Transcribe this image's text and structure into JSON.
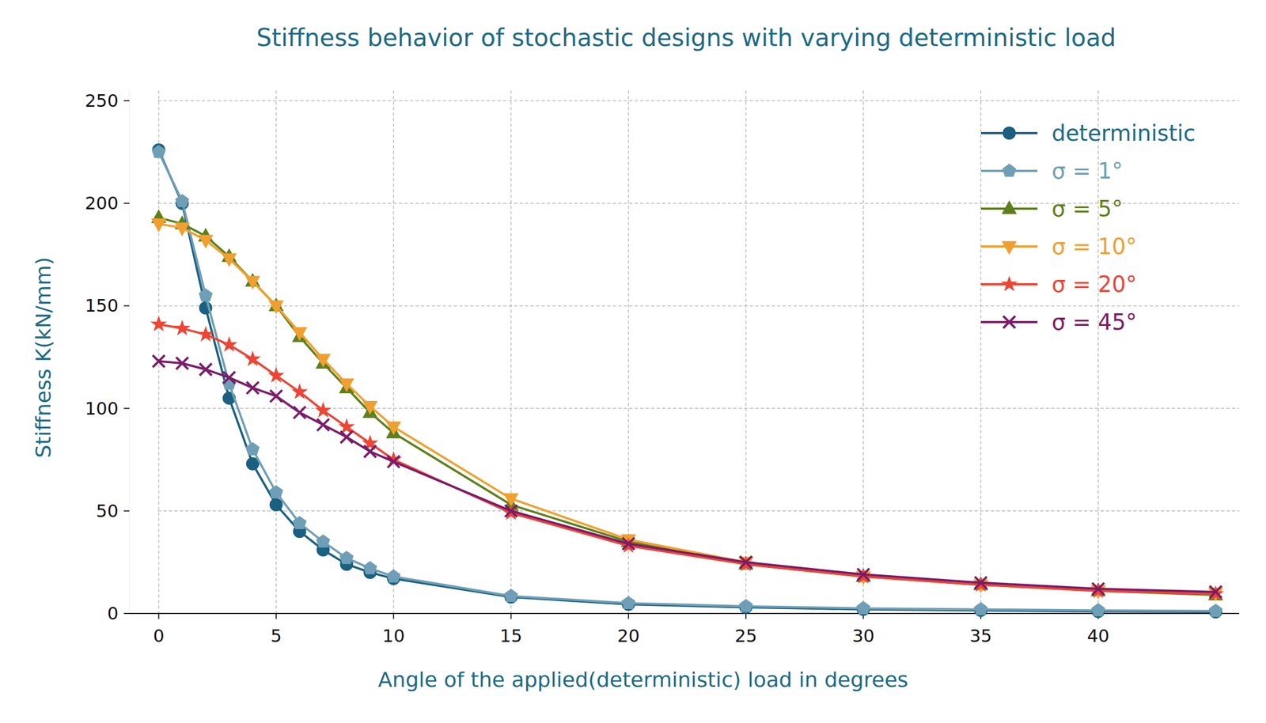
{
  "chart_data": {
    "type": "line",
    "title": "Stiffness behavior of stochastic designs with varying deterministic load",
    "x_label": "Angle of the applied(deterministic) load in degrees",
    "y_label": "Stiffness K(kN/mm)",
    "x": [
      0,
      1,
      2,
      3,
      4,
      5,
      6,
      7,
      8,
      9,
      10,
      15,
      20,
      25,
      30,
      35,
      40,
      45
    ],
    "series": [
      {
        "name": "deterministic",
        "color": "#1b6081",
        "marker": "circle",
        "values": [
          226,
          200,
          149,
          105,
          73,
          53,
          40,
          31,
          24,
          20,
          17,
          8,
          4.5,
          3,
          2,
          1.5,
          1,
          0.8
        ]
      },
      {
        "name": "σ = 1°",
        "color": "#6f9fb6",
        "marker": "pentagon",
        "values": [
          225,
          201,
          155,
          112,
          80,
          59,
          44,
          35,
          27,
          22,
          18,
          8.5,
          5,
          3.5,
          2.5,
          2,
          1.5,
          1.2
        ]
      },
      {
        "name": "σ = 5°",
        "color": "#5d801c",
        "marker": "triangle-up",
        "values": [
          193,
          190,
          184,
          174,
          162,
          150,
          135,
          122,
          110,
          98,
          88,
          53,
          35,
          24,
          18,
          14,
          11,
          9
        ]
      },
      {
        "name": "σ = 10°",
        "color": "#f0a030",
        "marker": "triangle-down",
        "values": [
          190,
          188,
          182,
          173,
          162,
          150,
          137,
          124,
          112,
          101,
          91,
          56,
          36,
          25,
          18,
          14,
          11,
          10
        ]
      },
      {
        "name": "σ = 20°",
        "color": "#ee4536",
        "marker": "star",
        "values": [
          141,
          139,
          136,
          131,
          124,
          116,
          108,
          99,
          91,
          83,
          75,
          49,
          33,
          24,
          18,
          14,
          11,
          9.5
        ]
      },
      {
        "name": "σ = 45°",
        "color": "#7b1b68",
        "marker": "x",
        "values": [
          123,
          122,
          119,
          115,
          110,
          106,
          98,
          92,
          86,
          79,
          74,
          50,
          34,
          25,
          19,
          15,
          12,
          10.5
        ]
      }
    ],
    "xlim": [
      -1.25,
      46
    ],
    "ylim": [
      0,
      255
    ],
    "xticks": [
      0,
      5,
      10,
      15,
      20,
      25,
      30,
      35,
      40
    ],
    "yticks": [
      0,
      50,
      100,
      150,
      200,
      250
    ],
    "grid": true,
    "legend": "upper right"
  }
}
